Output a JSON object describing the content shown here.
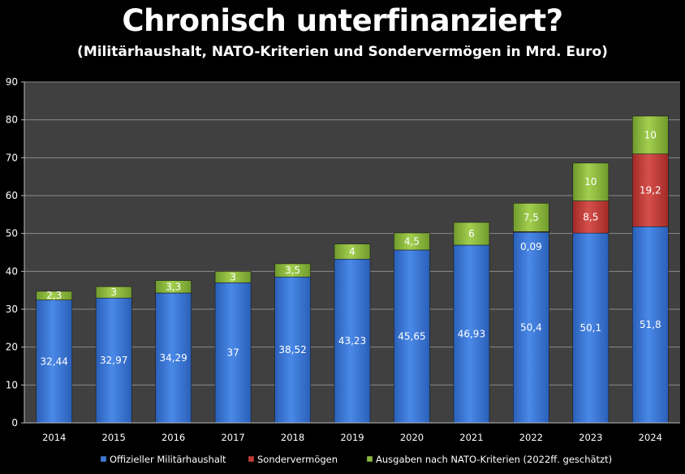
{
  "chart_data": {
    "type": "bar",
    "stacked": true,
    "title": "Chronisch unterfinanziert?",
    "subtitle": "(Militärhaushalt,  NATO-Kriterien  und  Sondervermögen  in  Mrd.  Euro)",
    "categories": [
      "2014",
      "2015",
      "2016",
      "2017",
      "2018",
      "2019",
      "2020",
      "2021",
      "2022",
      "2023",
      "2024"
    ],
    "series": [
      {
        "name": "Offizieller Militärhaushalt",
        "color": "#3d78d6",
        "values": [
          32.44,
          32.97,
          34.29,
          37,
          38.52,
          43.23,
          45.65,
          46.93,
          50.4,
          50.1,
          51.8
        ],
        "labels": [
          "32,44",
          "32,97",
          "34,29",
          "37",
          "38,52",
          "43,23",
          "45,65",
          "46,93",
          "50,4",
          "50,1",
          "51,8"
        ]
      },
      {
        "name": "Sondervermögen",
        "color": "#c23a36",
        "values": [
          0,
          0,
          0,
          0,
          0,
          0,
          0,
          0,
          0.09,
          8.5,
          19.2
        ],
        "labels": [
          "",
          "",
          "",
          "",
          "",
          "",
          "",
          "",
          "0,09",
          "8,5",
          "19,2"
        ]
      },
      {
        "name": "Ausgaben nach NATO-Kriterien (2022ff. geschätzt)",
        "color": "#8cba3c",
        "values": [
          2.3,
          3,
          3.3,
          3,
          3.5,
          4,
          4.5,
          6,
          7.5,
          10,
          10
        ],
        "labels": [
          "2,3",
          "3",
          "3,3",
          "3",
          "3,5",
          "4",
          "4,5",
          "6",
          "7,5",
          "10",
          "10"
        ]
      }
    ],
    "ylim": [
      0,
      90
    ],
    "yticks": [
      0,
      10,
      20,
      30,
      40,
      50,
      60,
      70,
      80,
      90
    ],
    "grid": true,
    "legend_position": "bottom"
  }
}
